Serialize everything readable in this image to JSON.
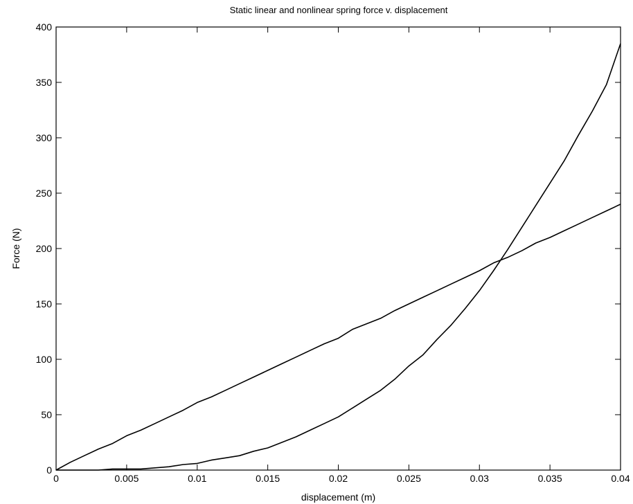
{
  "chart_data": {
    "type": "line",
    "title": "Static linear and nonlinear spring force v. displacement",
    "xlabel": "displacement (m)",
    "ylabel": "Force (N)",
    "xlim": [
      0,
      0.04
    ],
    "ylim": [
      0,
      400
    ],
    "x_ticks": [
      0,
      0.005,
      0.01,
      0.015,
      0.02,
      0.025,
      0.03,
      0.035,
      0.04
    ],
    "x_tick_labels": [
      "0",
      "0.005",
      "0.01",
      "0.015",
      "0.02",
      "0.025",
      "0.03",
      "0.035",
      "0.04"
    ],
    "y_ticks": [
      0,
      50,
      100,
      150,
      200,
      250,
      300,
      350,
      400
    ],
    "y_tick_labels": [
      "0",
      "50",
      "100",
      "150",
      "200",
      "250",
      "300",
      "350",
      "400"
    ],
    "grid": false,
    "legend": false,
    "series": [
      {
        "color": "#000000",
        "x": [
          0,
          0.001,
          0.002,
          0.003,
          0.004,
          0.005,
          0.006,
          0.007,
          0.008,
          0.009,
          0.01,
          0.011,
          0.012,
          0.013,
          0.014,
          0.015,
          0.016,
          0.017,
          0.018,
          0.019,
          0.02,
          0.021,
          0.022,
          0.023,
          0.024,
          0.025,
          0.026,
          0.027,
          0.028,
          0.029,
          0.03,
          0.031,
          0.032,
          0.033,
          0.034,
          0.035,
          0.036,
          0.037,
          0.038,
          0.039,
          0.04
        ],
        "values": [
          0,
          7,
          13,
          19,
          24,
          31,
          36,
          42,
          48,
          54,
          61,
          66,
          72,
          78,
          84,
          90,
          96,
          102,
          108,
          114,
          119,
          127,
          132,
          137,
          144,
          150,
          156,
          162,
          168,
          174,
          180,
          187,
          192,
          198,
          205,
          210,
          216,
          222,
          228,
          234,
          240
        ]
      },
      {
        "color": "#000000",
        "x": [
          0,
          0.001,
          0.002,
          0.003,
          0.004,
          0.005,
          0.006,
          0.007,
          0.008,
          0.009,
          0.01,
          0.011,
          0.012,
          0.013,
          0.014,
          0.015,
          0.016,
          0.017,
          0.018,
          0.019,
          0.02,
          0.021,
          0.022,
          0.023,
          0.024,
          0.025,
          0.026,
          0.027,
          0.028,
          0.029,
          0.03,
          0.031,
          0.032,
          0.033,
          0.034,
          0.035,
          0.036,
          0.037,
          0.038,
          0.039,
          0.04
        ],
        "values": [
          0,
          0,
          0,
          0,
          1,
          1,
          1,
          2,
          3,
          5,
          6,
          9,
          11,
          13,
          17,
          20,
          25,
          30,
          36,
          42,
          48,
          56,
          64,
          72,
          82,
          94,
          104,
          118,
          131,
          146,
          162,
          180,
          199,
          219,
          239,
          259,
          279,
          302,
          324,
          348,
          385
        ]
      }
    ]
  }
}
